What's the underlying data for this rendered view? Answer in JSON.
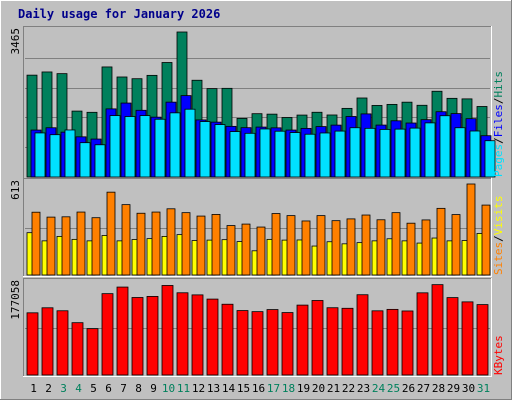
{
  "colors": {
    "background": "#c0c0c0",
    "plot_bg": "#c0c0c0",
    "hits": "#00805c",
    "files": "#0000ff",
    "pages": "#00e0ff",
    "visits": "#ffff00",
    "sites": "#ff8000",
    "kbytes": "#ff0000",
    "weekday": "#000000",
    "weekend": "#00805c",
    "title": "#00008b"
  },
  "chart_data": {
    "type": "bar",
    "title": "Daily usage for January 2026",
    "days": [
      "1",
      "2",
      "3",
      "4",
      "5",
      "6",
      "7",
      "8",
      "9",
      "10",
      "11",
      "12",
      "13",
      "14",
      "15",
      "16",
      "17",
      "18",
      "19",
      "20",
      "21",
      "22",
      "23",
      "24",
      "25",
      "26",
      "27",
      "28",
      "29",
      "30",
      "31"
    ],
    "weekend_days": [
      3,
      4,
      10,
      11,
      17,
      18,
      24,
      25,
      31
    ],
    "panels": [
      {
        "name": "hits-files-pages",
        "ymax_label": "3465",
        "ymax": 3465,
        "legend": [
          "Pages",
          "/",
          "Files",
          "/",
          "Hits"
        ],
        "series": [
          {
            "name": "Hits",
            "values": [
              2434,
              2510,
              2470,
              1575,
              1546,
              2630,
              2390,
              2349,
              2429,
              2736,
              3465,
              2312,
              2112,
              2119,
              1401,
              1513,
              1502,
              1422,
              1480,
              1547,
              1482,
              1640,
              1888,
              1710,
              1735,
              1788,
              1714,
              2049,
              1880,
              1867,
              1685
            ]
          },
          {
            "name": "Files",
            "values": [
              1122,
              1177,
              1072,
              960,
              907,
              1628,
              1767,
              1594,
              1430,
              1789,
              1945,
              1364,
              1311,
              1210,
              1179,
              1193,
              1175,
              1122,
              1161,
              1205,
              1240,
              1446,
              1508,
              1241,
              1343,
              1290,
              1370,
              1560,
              1515,
              1394,
              987
            ]
          },
          {
            "name": "Pages",
            "values": [
              1053,
              1011,
              1124,
              820,
              770,
              1467,
              1445,
              1467,
              1380,
              1533,
              1620,
              1325,
              1253,
              1085,
              1044,
              1148,
              1094,
              1062,
              1022,
              1052,
              1097,
              1177,
              1163,
              1136,
              1144,
              1168,
              1293,
              1464,
              1177,
              1099,
              867
            ]
          }
        ]
      },
      {
        "name": "visits-sites",
        "ymax_label": "613",
        "ymax": 613,
        "legend": [
          "Sites",
          "/",
          "Visits"
        ],
        "series": [
          {
            "name": "Visits",
            "values": [
              285,
              230,
              260,
              240,
              230,
              266,
              230,
              239,
              245,
              260,
              272,
              232,
              235,
              238,
              225,
              163,
              240,
              235,
              236,
              195,
              224,
              210,
              218,
              230,
              244,
              230,
              215,
              249,
              230,
              232,
              280
            ]
          },
          {
            "name": "Sites",
            "values": [
              423,
              390,
              392,
              424,
              386,
              558,
              474,
              416,
              424,
              446,
              420,
              397,
              408,
              333,
              343,
              323,
              414,
              400,
              364,
              400,
              366,
              378,
              404,
              372,
              420,
              349,
              371,
              449,
              407,
              613,
              471
            ]
          }
        ]
      },
      {
        "name": "kbytes",
        "ymax_label": "177058",
        "ymax": 177058,
        "legend": [
          "KBytes"
        ],
        "series": [
          {
            "name": "KBytes",
            "values": [
              121000,
              130800,
              125000,
              101800,
              90200,
              158300,
              171100,
              150800,
              152900,
              174200,
              160000,
              155900,
              147700,
              137700,
              125400,
              123300,
              127300,
              121500,
              136000,
              145000,
              130900,
              129800,
              156200,
              124900,
              127700,
              124600,
              159900,
              175800,
              150600,
              142300,
              137000
            ]
          }
        ]
      }
    ]
  }
}
